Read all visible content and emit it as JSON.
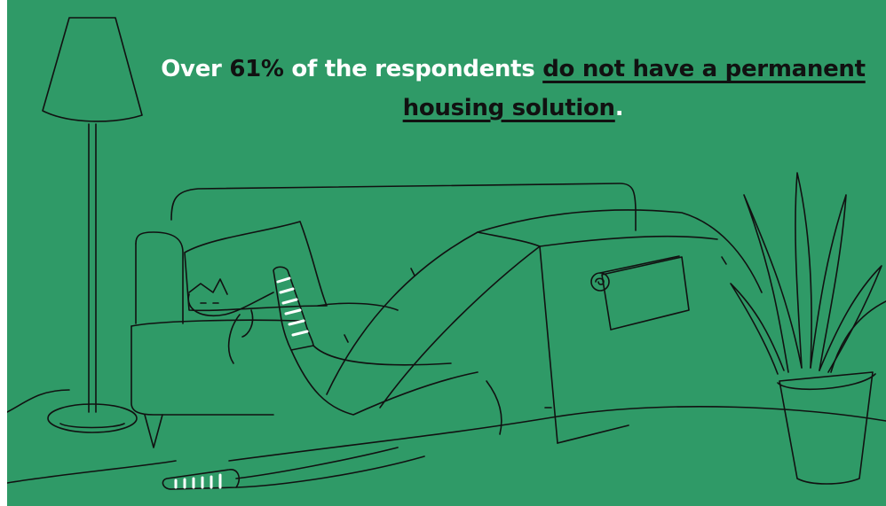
{
  "headline": {
    "pre": "Over ",
    "percent": "61%",
    "mid": " of the respondents ",
    "emphasis": "do not have a permanent housing solution",
    "end": "."
  },
  "colors": {
    "background": "#2f9a67",
    "ink": "#111111",
    "highlight": "#ffffff"
  }
}
